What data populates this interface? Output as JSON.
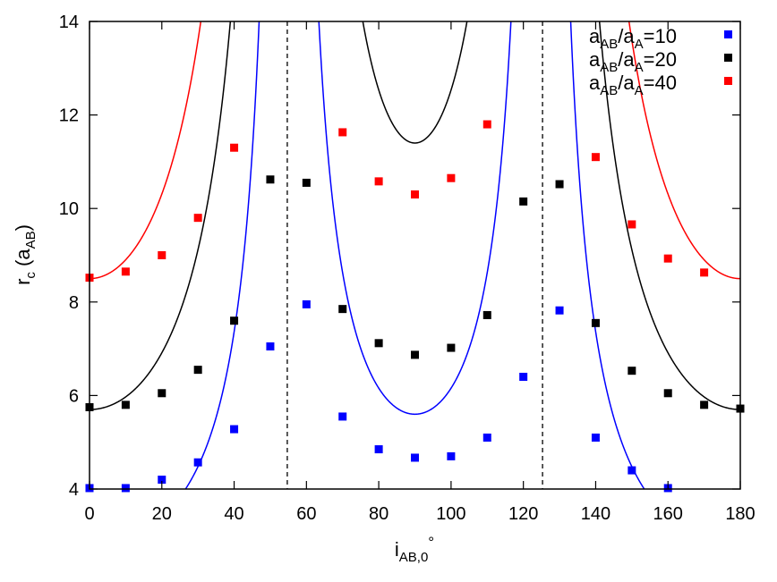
{
  "chart_data": {
    "type": "scatter",
    "xlabel": {
      "main": "i",
      "sub": "AB,0",
      "suffix": "°"
    },
    "ylabel": {
      "main": "r",
      "sub": "c",
      "paren_open": " (a",
      "paren_sub": "AB",
      "paren_close": ")"
    },
    "xlim": [
      0,
      180
    ],
    "ylim": [
      4,
      14
    ],
    "x_ticks": [
      0,
      20,
      40,
      60,
      80,
      100,
      120,
      140,
      160,
      180
    ],
    "y_ticks": [
      4,
      6,
      8,
      10,
      12,
      14
    ],
    "x_tick_labels": [
      "0",
      "20",
      "40",
      "60",
      "80",
      "100",
      "120",
      "140",
      "160",
      "180"
    ],
    "y_tick_labels": [
      "4",
      "6",
      "8",
      "10",
      "12",
      "14"
    ],
    "grid": false,
    "legend_position": "top-right",
    "vertical_lines": [
      54.7,
      125.3
    ],
    "series": [
      {
        "legend": {
          "a1": "a",
          "s1": "AB",
          "slash": "/a",
          "s2": "A",
          "eq": "=10"
        },
        "color": "#0000ff",
        "curve_base": 2.8,
        "points": [
          [
            0,
            4.02
          ],
          [
            10,
            4.02
          ],
          [
            20,
            4.2
          ],
          [
            30,
            4.57
          ],
          [
            40,
            5.28
          ],
          [
            50,
            7.05
          ],
          [
            60,
            7.95
          ],
          [
            70,
            5.55
          ],
          [
            80,
            4.85
          ],
          [
            90,
            4.67
          ],
          [
            100,
            4.7
          ],
          [
            110,
            5.1
          ],
          [
            120,
            6.4
          ],
          [
            130,
            7.82
          ],
          [
            140,
            5.1
          ],
          [
            150,
            4.4
          ],
          [
            160,
            4.02
          ]
        ]
      },
      {
        "legend": {
          "a1": "a",
          "s1": "AB",
          "slash": "/a",
          "s2": "A",
          "eq": "=20"
        },
        "color": "#000000",
        "curve_base": 5.7,
        "points": [
          [
            0,
            5.75
          ],
          [
            10,
            5.8
          ],
          [
            20,
            6.05
          ],
          [
            30,
            6.55
          ],
          [
            40,
            7.6
          ],
          [
            50,
            10.62
          ],
          [
            60,
            10.55
          ],
          [
            70,
            7.85
          ],
          [
            80,
            7.12
          ],
          [
            90,
            6.87
          ],
          [
            100,
            7.02
          ],
          [
            110,
            7.72
          ],
          [
            120,
            10.15
          ],
          [
            130,
            10.52
          ],
          [
            140,
            7.55
          ],
          [
            150,
            6.53
          ],
          [
            160,
            6.05
          ],
          [
            170,
            5.8
          ],
          [
            180,
            5.72
          ]
        ]
      },
      {
        "legend": {
          "a1": "a",
          "s1": "AB",
          "slash": "/a",
          "s2": "A",
          "eq": "=40"
        },
        "color": "#ff0000",
        "curve_base": 8.5,
        "points": [
          [
            0,
            8.52
          ],
          [
            10,
            8.65
          ],
          [
            20,
            9.0
          ],
          [
            30,
            9.8
          ],
          [
            40,
            11.3
          ],
          [
            70,
            11.63
          ],
          [
            80,
            10.58
          ],
          [
            90,
            10.3
          ],
          [
            100,
            10.65
          ],
          [
            110,
            11.8
          ],
          [
            140,
            11.1
          ],
          [
            150,
            9.66
          ],
          [
            160,
            8.93
          ],
          [
            170,
            8.63
          ]
        ]
      }
    ]
  }
}
